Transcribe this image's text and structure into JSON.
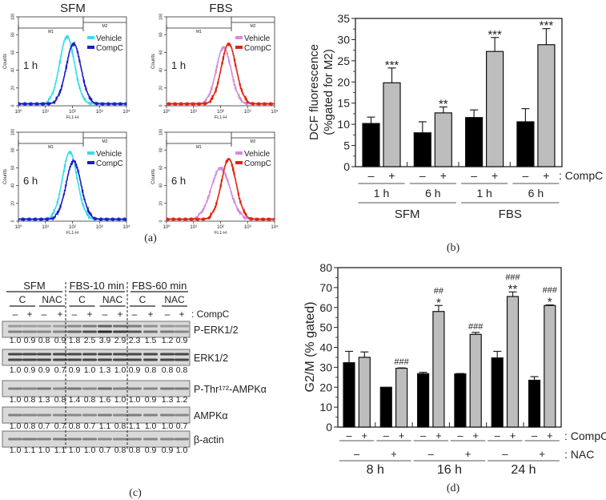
{
  "panel_labels": {
    "a": "(a)",
    "b": "(b)",
    "c": "(c)",
    "d": "(d)"
  },
  "colors": {
    "vehicle_sfm": "#35dcec",
    "compc_sfm": "#1c1cc8",
    "vehicle_fbs": "#d58ad8",
    "compc_fbs": "#e0230f",
    "bar_minus": "#000000",
    "bar_plus": "#bdbdbd"
  },
  "chart_data": [
    {
      "panel": "a",
      "type": "line",
      "xlabel": "FL1-H",
      "ylabel": "Counts",
      "xscale": "log",
      "xlim": [
        1,
        10000
      ],
      "ylim": [
        0,
        100
      ],
      "xticks": [
        "10⁰",
        "10¹",
        "10²",
        "10³",
        "10⁴"
      ],
      "yticks": [
        "0",
        "20",
        "40",
        "60",
        "80",
        "100"
      ],
      "gates": [
        "M1",
        "M2"
      ],
      "plots": [
        {
          "title": "SFM",
          "time": "1 h",
          "series": [
            {
              "name": "Vehicle",
              "peak_fl1h": 63,
              "peak_counts": 74
            },
            {
              "name": "CompC",
              "peak_fl1h": 110,
              "peak_counts": 66
            }
          ]
        },
        {
          "title": "FBS",
          "time": "1 h",
          "series": [
            {
              "name": "Vehicle",
              "peak_fl1h": 130,
              "peak_counts": 62
            },
            {
              "name": "CompC",
              "peak_fl1h": 200,
              "peak_counts": 66
            }
          ]
        },
        {
          "title": "",
          "time": "6 h",
          "series": [
            {
              "name": "Vehicle",
              "peak_fl1h": 80,
              "peak_counts": 74
            },
            {
              "name": "CompC",
              "peak_fl1h": 110,
              "peak_counts": 64
            }
          ]
        },
        {
          "title": "",
          "time": "6 h",
          "series": [
            {
              "name": "Vehicle",
              "peak_fl1h": 100,
              "peak_counts": 56
            },
            {
              "name": "CompC",
              "peak_fl1h": 200,
              "peak_counts": 66
            }
          ]
        }
      ]
    },
    {
      "panel": "b",
      "type": "bar",
      "ylabel": [
        "DCF fluorescence",
        "(%gated for M2)"
      ],
      "ylim": [
        0,
        35
      ],
      "yticks": [
        "0",
        "5",
        "10",
        "15",
        "20",
        "25",
        "30",
        "35"
      ],
      "compc_row": [
        "–",
        "+",
        "–",
        "+",
        "–",
        "+",
        "–",
        "+"
      ],
      "compc_label": ": CompC",
      "times": [
        "1 h",
        "6 h",
        "1 h",
        "6 h"
      ],
      "media": [
        "SFM",
        "FBS"
      ],
      "values": [
        10.2,
        19.8,
        8.0,
        12.7,
        11.6,
        27.2,
        10.6,
        28.8
      ],
      "errors": [
        1.5,
        3.5,
        2.6,
        1.4,
        1.8,
        3.3,
        3.1,
        3.8
      ],
      "annotations": [
        "",
        "***",
        "",
        "**",
        "",
        "***",
        "",
        "***"
      ]
    },
    {
      "panel": "c",
      "type": "table",
      "groups": [
        "SFM",
        "FBS-10 min",
        "FBS-60 min"
      ],
      "subgroups": [
        "C",
        "NAC",
        "C",
        "NAC",
        "C",
        "NAC"
      ],
      "compc_row": [
        "–",
        "+",
        "–",
        "+",
        "–",
        "+",
        "–",
        "+",
        "–",
        "+",
        "–",
        "+"
      ],
      "compc_label": ": CompC",
      "rows": [
        {
          "label": "P-ERK1/2",
          "values": [
            "1.0",
            "0.9",
            "0.8",
            "0.9",
            "1.8",
            "2.5",
            "3.9",
            "2.9",
            "2.3",
            "1.5",
            "1.2",
            "0.9"
          ]
        },
        {
          "label": "ERK1/2",
          "values": [
            "1.0",
            "0.9",
            "0.9",
            "0.7",
            "0.9",
            "1.0",
            "1.3",
            "1.0",
            "0.9",
            "0.8",
            "0.8",
            "0.8"
          ]
        },
        {
          "label": "P-Thr¹⁷²-AMPKα",
          "values": [
            "1.0",
            "0.8",
            "1.3",
            "0.8",
            "1.4",
            "0.8",
            "1.6",
            "1.0",
            "1.0",
            "0.9",
            "1.3",
            "1.2"
          ]
        },
        {
          "label": "AMPKα",
          "values": [
            "1.0",
            "0.8",
            "0.7",
            "0.7",
            "0.8",
            "0.7",
            "1.1",
            "0.8",
            "1.1",
            "1.0",
            "1.0",
            "0.7"
          ]
        },
        {
          "label": "β-actin",
          "values": [
            "1.0",
            "1.1",
            "1.0",
            "1.1",
            "1.0",
            "1.0",
            "0.7",
            "0.8",
            "0.8",
            "0.9",
            "0.9",
            "1.0"
          ]
        }
      ]
    },
    {
      "panel": "d",
      "type": "bar",
      "ylabel": "G2/M (% gated)",
      "ylim": [
        0,
        80
      ],
      "yticks": [
        "0",
        "10",
        "20",
        "30",
        "40",
        "50",
        "60",
        "70",
        "80"
      ],
      "compc_row": [
        "–",
        "+",
        "–",
        "+",
        "–",
        "+",
        "–",
        "+",
        "–",
        "+",
        "–",
        "+"
      ],
      "compc_label": ": CompC",
      "nac_row": [
        "–",
        "+",
        "–",
        "+",
        "–",
        "+"
      ],
      "nac_label": ": NAC",
      "times": [
        "8 h",
        "16 h",
        "24 h"
      ],
      "values": [
        32.3,
        35.0,
        20.0,
        29.5,
        26.8,
        58.0,
        26.7,
        46.5,
        34.7,
        65.5,
        23.5,
        61.0
      ],
      "errors": [
        5.7,
        2.7,
        0,
        0.2,
        0.7,
        3.0,
        0.2,
        1.0,
        3.3,
        2.3,
        1.8,
        0.3
      ],
      "annotations": [
        [
          "",
          ""
        ],
        [
          "",
          ""
        ],
        [
          "",
          ""
        ],
        [
          "###",
          ""
        ],
        [
          "",
          ""
        ],
        [
          "##",
          "*"
        ],
        [
          "",
          ""
        ],
        [
          "###",
          ""
        ],
        [
          "",
          ""
        ],
        [
          "###",
          "**"
        ],
        [
          "",
          ""
        ],
        [
          "###",
          "*"
        ]
      ]
    }
  ]
}
